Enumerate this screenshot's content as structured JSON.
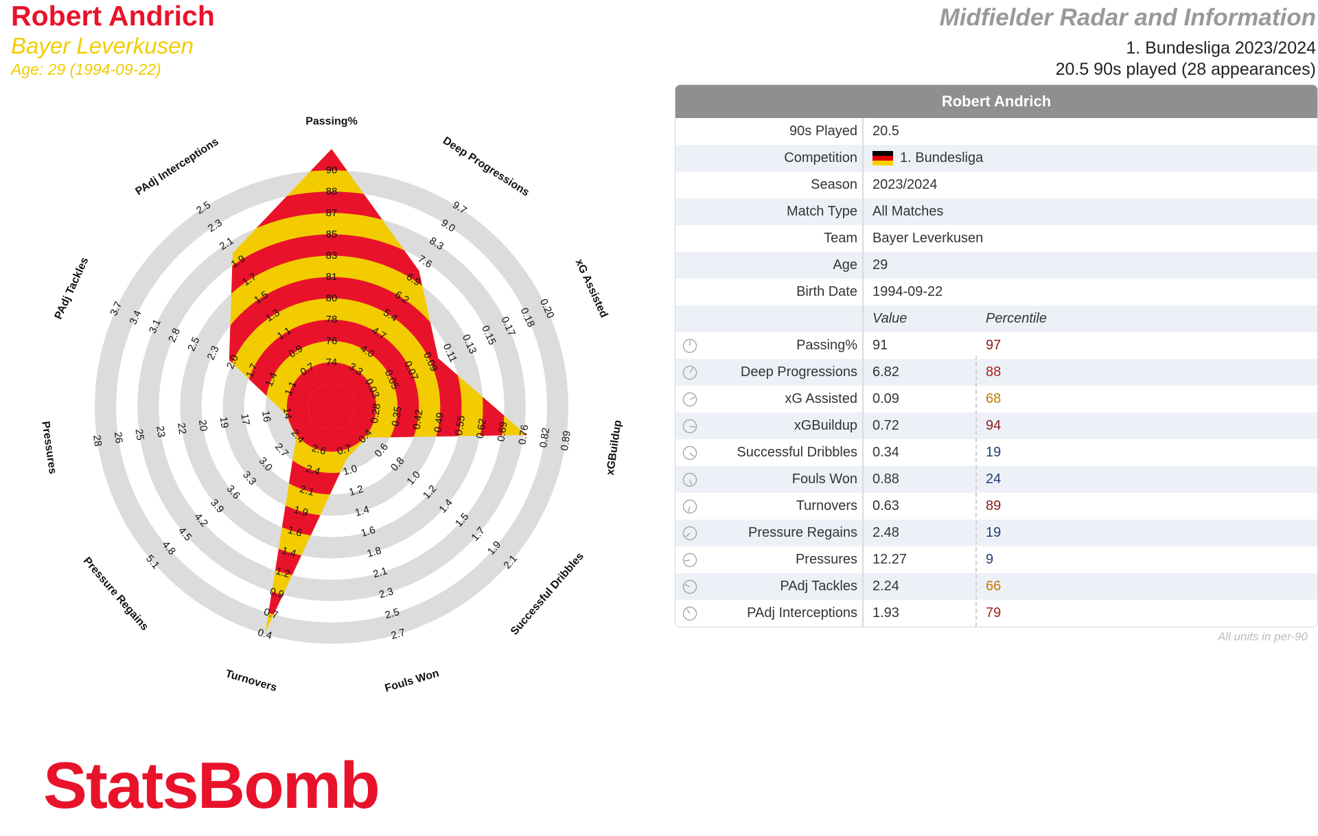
{
  "header": {
    "player_name": "Robert Andrich",
    "team": "Bayer Leverkusen",
    "age_line": "Age: 29 (1994-09-22)",
    "report_title": "Midfielder Radar and Information",
    "league_line": "1. Bundesliga 2023/2024",
    "played_line": "20.5 90s played (28 appearances)"
  },
  "colors": {
    "red": "#e8132b",
    "yellow": "#f2cc00",
    "ring": "#dcdcdc",
    "pct_high": "#8b1a1a",
    "pct_mid": "#c07a00",
    "pct_low": "#1f3f7a"
  },
  "chart_data": {
    "type": "radar",
    "metrics": [
      {
        "label": "Passing%",
        "ticks": [
          "74",
          "76",
          "78",
          "80",
          "81",
          "83",
          "85",
          "87",
          "88",
          "90"
        ],
        "value": 91,
        "fill": 1.0
      },
      {
        "label": "Deep Progressions",
        "ticks": [
          "3.3",
          "4.0",
          "4.7",
          "5.4",
          "6.2",
          "6.9",
          "7.6",
          "8.3",
          "9.0",
          "9.7"
        ],
        "value": 6.82,
        "fill": 0.59
      },
      {
        "label": "xG Assisted",
        "ticks": [
          "0.03",
          "0.05",
          "0.07",
          "0.09",
          "0.11",
          "0.13",
          "0.15",
          "0.17",
          "0.18",
          "0.20"
        ],
        "value": 0.09,
        "fill": 0.4
      },
      {
        "label": "xGBuildup",
        "ticks": [
          "0.28",
          "0.35",
          "0.42",
          "0.49",
          "0.55",
          "0.62",
          "0.69",
          "0.76",
          "0.82",
          "0.89"
        ],
        "value": 0.72,
        "fill": 0.74
      },
      {
        "label": "Successful Dribbles",
        "ticks": [
          "0.4",
          "0.6",
          "0.8",
          "1.0",
          "1.2",
          "1.4",
          "1.5",
          "1.7",
          "1.9",
          "2.1"
        ],
        "value": 0.34,
        "fill": 0.1
      },
      {
        "label": "Fouls Won",
        "ticks": [
          "0.7",
          "1.0",
          "1.2",
          "1.4",
          "1.6",
          "1.8",
          "2.1",
          "2.3",
          "2.5",
          "2.7"
        ],
        "value": 0.88,
        "fill": 0.13
      },
      {
        "label": "Turnovers",
        "ticks": [
          "2.6",
          "2.4",
          "2.1",
          "1.9",
          "1.6",
          "1.4",
          "1.2",
          "0.9",
          "0.7",
          "0.4"
        ],
        "value": 0.63,
        "fill": 0.9
      },
      {
        "label": "Pressure Regains",
        "ticks": [
          "2.4",
          "2.7",
          "3.0",
          "3.3",
          "3.6",
          "3.9",
          "4.2",
          "4.5",
          "4.8",
          "5.1"
        ],
        "value": 2.48,
        "fill": 0.1
      },
      {
        "label": "Pressures",
        "ticks": [
          "14",
          "16",
          "17",
          "19",
          "20",
          "22",
          "23",
          "25",
          "26",
          "28"
        ],
        "value": 12.27,
        "fill": 0.1
      },
      {
        "label": "PAdj Tackles",
        "ticks": [
          "1.1",
          "1.4",
          "1.7",
          "2.0",
          "2.3",
          "2.5",
          "2.8",
          "3.1",
          "3.4",
          "3.7"
        ],
        "value": 2.24,
        "fill": 0.38
      },
      {
        "label": "PAdj Interceptions",
        "ticks": [
          "0.7",
          "0.9",
          "1.1",
          "1.3",
          "1.5",
          "1.7",
          "1.9",
          "2.1",
          "2.3",
          "2.5"
        ],
        "value": 1.93,
        "fill": 0.68
      }
    ]
  },
  "table": {
    "title": "Robert Andrich",
    "info_rows": [
      {
        "label": "90s Played",
        "value": "20.5"
      },
      {
        "label": "Competition",
        "value": "1. Bundesliga",
        "flag": true
      },
      {
        "label": "Season",
        "value": "2023/2024"
      },
      {
        "label": "Match Type",
        "value": "All Matches"
      },
      {
        "label": "Team",
        "value": "Bayer Leverkusen"
      },
      {
        "label": "Age",
        "value": "29"
      },
      {
        "label": "Birth Date",
        "value": "1994-09-22"
      }
    ],
    "value_header": "Value",
    "percentile_header": "Percentile",
    "metric_rows": [
      {
        "label": "Passing%",
        "value": "91",
        "percentile": "97",
        "pct_color": "#8b1a1a"
      },
      {
        "label": "Deep Progressions",
        "value": "6.82",
        "percentile": "88",
        "pct_color": "#a8241a"
      },
      {
        "label": "xG Assisted",
        "value": "0.09",
        "percentile": "68",
        "pct_color": "#c07a00"
      },
      {
        "label": "xGBuildup",
        "value": "0.72",
        "percentile": "94",
        "pct_color": "#8b1a1a"
      },
      {
        "label": "Successful Dribbles",
        "value": "0.34",
        "percentile": "19",
        "pct_color": "#1f3f7a"
      },
      {
        "label": "Fouls Won",
        "value": "0.88",
        "percentile": "24",
        "pct_color": "#1f3f7a"
      },
      {
        "label": "Turnovers",
        "value": "0.63",
        "percentile": "89",
        "pct_color": "#8b1a1a"
      },
      {
        "label": "Pressure Regains",
        "value": "2.48",
        "percentile": "19",
        "pct_color": "#1f3f7a"
      },
      {
        "label": "Pressures",
        "value": "12.27",
        "percentile": "9",
        "pct_color": "#1f3f7a"
      },
      {
        "label": "PAdj Tackles",
        "value": "2.24",
        "percentile": "66",
        "pct_color": "#c07a00"
      },
      {
        "label": "PAdj Interceptions",
        "value": "1.93",
        "percentile": "79",
        "pct_color": "#a8241a"
      }
    ],
    "footnote": "All units in per-90"
  },
  "brand": "StatsBomb"
}
